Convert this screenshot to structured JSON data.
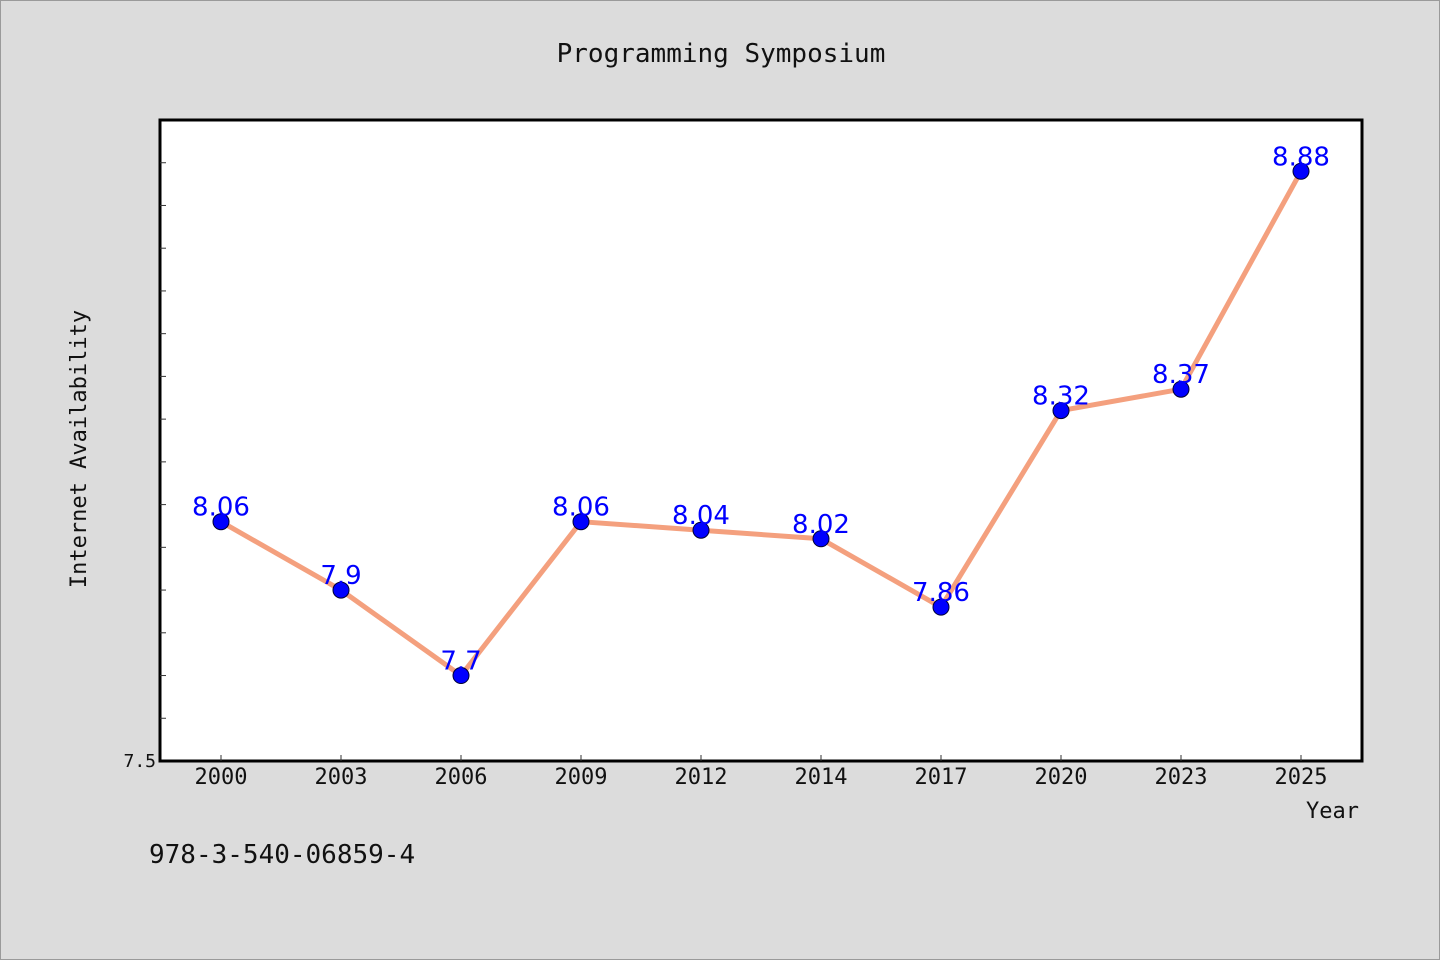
{
  "chart_data": {
    "type": "line",
    "title": "Programming Symposium",
    "xlabel": "Year",
    "ylabel": "Internet Availability",
    "categories": [
      "2000",
      "2003",
      "2006",
      "2009",
      "2012",
      "2014",
      "2017",
      "2020",
      "2023",
      "2025"
    ],
    "series": [
      {
        "values": [
          8.06,
          7.9,
          7.7,
          8.06,
          8.04,
          8.02,
          7.86,
          8.32,
          8.37,
          8.88
        ],
        "labels": [
          "8.06",
          "7.9",
          "7.7",
          "8.06",
          "8.04",
          "8.02",
          "7.86",
          "8.32",
          "8.37",
          "8.88"
        ]
      }
    ],
    "yticks": [
      "7.5"
    ],
    "ylim": [
      7.5,
      9.0
    ],
    "grid": false,
    "legend": "none",
    "line_color": "#f4a07e",
    "marker_color": "#0000ff",
    "label_color": "#0000ff"
  },
  "footnote": "978-3-540-06859-4"
}
